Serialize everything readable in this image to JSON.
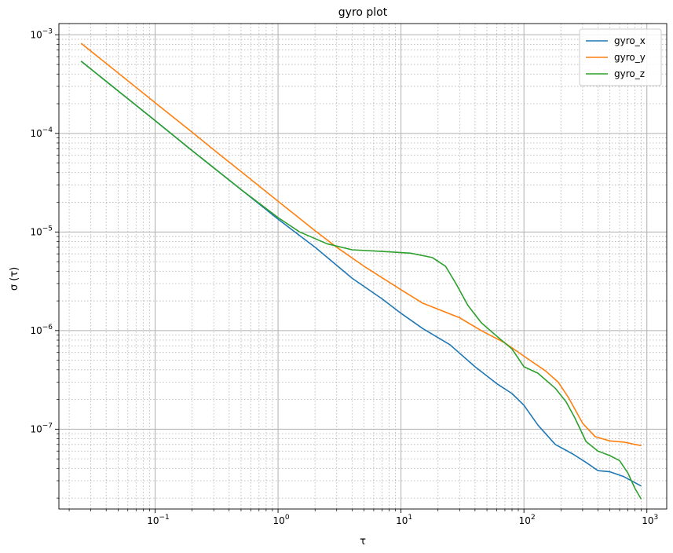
{
  "chart_data": {
    "type": "line",
    "title": "gyro plot",
    "xlabel": "τ",
    "ylabel": "σ (τ)",
    "xscale": "log",
    "yscale": "log",
    "xlim": [
      0.0165,
      1450
    ],
    "ylim": [
      1.55e-08,
      0.0013
    ],
    "grid": {
      "major": "on",
      "minor": "on (dotted)"
    },
    "legend": "top-right",
    "x_ticks": [
      {
        "value": 0.1,
        "base": "10",
        "exp": "−1"
      },
      {
        "value": 1,
        "base": "10",
        "exp": "0"
      },
      {
        "value": 10,
        "base": "10",
        "exp": "1"
      },
      {
        "value": 100,
        "base": "10",
        "exp": "2"
      },
      {
        "value": 1000,
        "base": "10",
        "exp": "3"
      }
    ],
    "y_ticks": [
      {
        "value": 1e-07,
        "base": "10",
        "exp": "−7"
      },
      {
        "value": 1e-06,
        "base": "10",
        "exp": "−6"
      },
      {
        "value": 1e-05,
        "base": "10",
        "exp": "−5"
      },
      {
        "value": 0.0001,
        "base": "10",
        "exp": "−4"
      },
      {
        "value": 0.001,
        "base": "10",
        "exp": "−3"
      }
    ],
    "series": [
      {
        "name": "gyro_x",
        "color": "#1f77b4",
        "points": [
          [
            0.025,
            0.00054
          ],
          [
            0.05,
            0.00027
          ],
          [
            0.1,
            0.000135
          ],
          [
            0.2,
            6.7e-05
          ],
          [
            0.5,
            2.7e-05
          ],
          [
            1,
            1.35e-05
          ],
          [
            2,
            7e-06
          ],
          [
            4,
            3.4e-06
          ],
          [
            7,
            2.1e-06
          ],
          [
            10,
            1.5e-06
          ],
          [
            15,
            1.05e-06
          ],
          [
            25,
            7.2e-07
          ],
          [
            40,
            4.3e-07
          ],
          [
            60,
            2.9e-07
          ],
          [
            80,
            2.3e-07
          ],
          [
            100,
            1.75e-07
          ],
          [
            130,
            1.1e-07
          ],
          [
            180,
            7e-08
          ],
          [
            250,
            5.6e-08
          ],
          [
            320,
            4.6e-08
          ],
          [
            400,
            3.8e-08
          ],
          [
            500,
            3.7e-08
          ],
          [
            650,
            3.3e-08
          ],
          [
            900,
            2.65e-08
          ]
        ]
      },
      {
        "name": "gyro_y",
        "color": "#ff7f0e",
        "points": [
          [
            0.025,
            0.00082
          ],
          [
            0.05,
            0.00041
          ],
          [
            0.1,
            0.000205
          ],
          [
            0.2,
            0.000103
          ],
          [
            0.3,
            6.8e-05
          ],
          [
            0.5,
            4.1e-05
          ],
          [
            1,
            2.05e-05
          ],
          [
            2,
            1.03e-05
          ],
          [
            3,
            7e-06
          ],
          [
            5,
            4.5e-06
          ],
          [
            10,
            2.6e-06
          ],
          [
            15,
            1.9e-06
          ],
          [
            20,
            1.65e-06
          ],
          [
            30,
            1.35e-06
          ],
          [
            45,
            1e-06
          ],
          [
            70,
            7.5e-07
          ],
          [
            100,
            5.5e-07
          ],
          [
            150,
            3.9e-07
          ],
          [
            190,
            3e-07
          ],
          [
            230,
            2.1e-07
          ],
          [
            300,
            1.15e-07
          ],
          [
            380,
            8.4e-08
          ],
          [
            500,
            7.6e-08
          ],
          [
            650,
            7.4e-08
          ],
          [
            900,
            6.8e-08
          ]
        ]
      },
      {
        "name": "gyro_z",
        "color": "#2ca02c",
        "points": [
          [
            0.025,
            0.00054
          ],
          [
            0.05,
            0.00027
          ],
          [
            0.1,
            0.000135
          ],
          [
            0.2,
            6.7e-05
          ],
          [
            0.5,
            2.7e-05
          ],
          [
            1,
            1.4e-05
          ],
          [
            1.5,
            1e-05
          ],
          [
            2.5,
            7.6e-06
          ],
          [
            4,
            6.6e-06
          ],
          [
            7,
            6.35e-06
          ],
          [
            12,
            6.1e-06
          ],
          [
            18,
            5.5e-06
          ],
          [
            23,
            4.5e-06
          ],
          [
            28,
            3e-06
          ],
          [
            35,
            1.8e-06
          ],
          [
            45,
            1.2e-06
          ],
          [
            60,
            8.8e-07
          ],
          [
            80,
            6.5e-07
          ],
          [
            100,
            4.3e-07
          ],
          [
            130,
            3.7e-07
          ],
          [
            180,
            2.6e-07
          ],
          [
            220,
            1.9e-07
          ],
          [
            260,
            1.3e-07
          ],
          [
            320,
            7.5e-08
          ],
          [
            400,
            6e-08
          ],
          [
            500,
            5.4e-08
          ],
          [
            600,
            4.8e-08
          ],
          [
            700,
            3.6e-08
          ],
          [
            800,
            2.5e-08
          ],
          [
            900,
            1.95e-08
          ]
        ]
      }
    ]
  }
}
